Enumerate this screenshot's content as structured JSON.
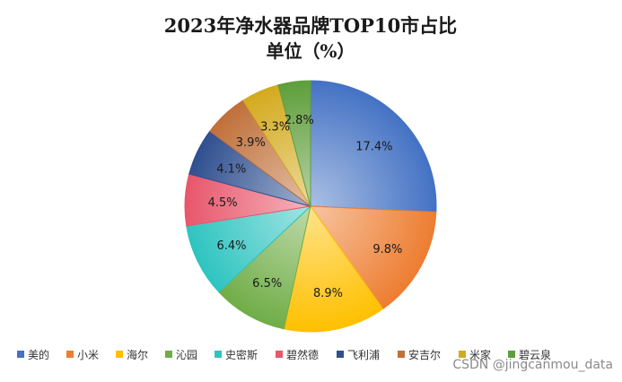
{
  "chart_data": {
    "type": "pie",
    "title": "2023年净水器品牌TOP10市占比",
    "subtitle": "单位（%）",
    "categories": [
      "美的",
      "小米",
      "海尔",
      "沁园",
      "史密斯",
      "碧然德",
      "飞利浦",
      "安吉尔",
      "米家",
      "碧云泉"
    ],
    "values": [
      17.4,
      9.8,
      8.9,
      6.5,
      6.4,
      4.5,
      4.1,
      3.9,
      3.3,
      2.8
    ],
    "labels": [
      "17.4%",
      "9.8%",
      "8.9%",
      "6.5%",
      "6.4%",
      "4.5%",
      "4.1%",
      "3.9%",
      "3.3%",
      "2.8%"
    ],
    "colors": [
      "#4472C4",
      "#ED7D31",
      "#FFC000",
      "#70AD47",
      "#2EC4C0",
      "#E8566B",
      "#2F4F8F",
      "#C0703A",
      "#D4AA1E",
      "#5E9E3A"
    ],
    "legend_position": "bottom"
  },
  "watermark": "CSDN @jingcanmou_data"
}
